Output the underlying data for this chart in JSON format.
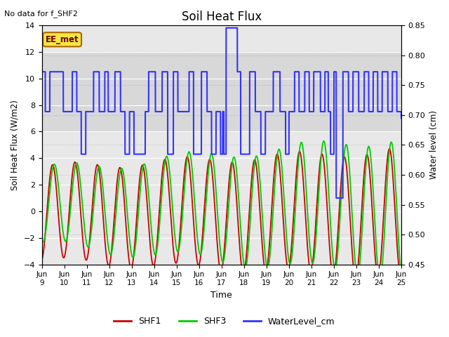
{
  "title": "Soil Heat Flux",
  "no_data_text": "No data for f_SHF2",
  "xlabel": "Time",
  "ylabel_left": "Soil Heat Flux (W/m2)",
  "ylabel_right": "Water level (cm)",
  "ylim_left": [
    -4,
    14
  ],
  "ylim_right": [
    0.45,
    0.85
  ],
  "yticks_left": [
    -4,
    -2,
    0,
    2,
    4,
    6,
    8,
    10,
    12,
    14
  ],
  "yticks_right": [
    0.45,
    0.5,
    0.55,
    0.6,
    0.65,
    0.7,
    0.75,
    0.8,
    0.85
  ],
  "ee_met_label": "EE_met",
  "shf1_color": "#cc0000",
  "shf3_color": "#00cc00",
  "water_color": "#3333ff",
  "bg_color": "#e8e8e8",
  "band_light": "#d8d8d8",
  "legend_labels": [
    "SHF1",
    "SHF3",
    "WaterLevel_cm"
  ],
  "water_steps_t": [
    0.0,
    0.15,
    0.35,
    0.95,
    1.35,
    1.55,
    1.75,
    1.95,
    2.3,
    2.55,
    2.8,
    2.95,
    3.25,
    3.5,
    3.7,
    3.9,
    4.1,
    4.6,
    4.75,
    5.05,
    5.35,
    5.6,
    5.85,
    6.05,
    6.55,
    6.75,
    7.1,
    7.35,
    7.55,
    7.75,
    7.95,
    8.05,
    8.1,
    8.2,
    8.7,
    8.85,
    9.25,
    9.5,
    9.75,
    9.95,
    10.3,
    10.6,
    10.85,
    11.0,
    11.25,
    11.45,
    11.7,
    11.9,
    12.1,
    12.4,
    12.6,
    12.75,
    12.85,
    13.0,
    13.1,
    13.4,
    13.65,
    13.85,
    14.1,
    14.35,
    14.55,
    14.75,
    14.95,
    15.15,
    15.4,
    15.6,
    15.8,
    16.0
  ],
  "water_steps_v": [
    10.5,
    7.5,
    10.5,
    7.5,
    10.5,
    7.5,
    4.3,
    7.5,
    10.5,
    7.5,
    10.5,
    7.5,
    10.5,
    7.5,
    4.3,
    7.5,
    4.3,
    7.5,
    10.5,
    7.5,
    10.5,
    4.3,
    10.5,
    7.5,
    10.5,
    4.3,
    10.5,
    7.5,
    4.3,
    7.5,
    4.3,
    7.5,
    4.3,
    13.8,
    10.5,
    4.3,
    10.5,
    7.5,
    4.3,
    7.5,
    10.5,
    7.5,
    4.3,
    7.5,
    10.5,
    7.5,
    10.5,
    7.5,
    10.5,
    7.5,
    10.5,
    7.5,
    4.3,
    10.5,
    1.0,
    10.5,
    7.5,
    10.5,
    7.5,
    10.5,
    7.5,
    10.5,
    7.5,
    10.5,
    7.5,
    10.5,
    7.5,
    7.0
  ]
}
